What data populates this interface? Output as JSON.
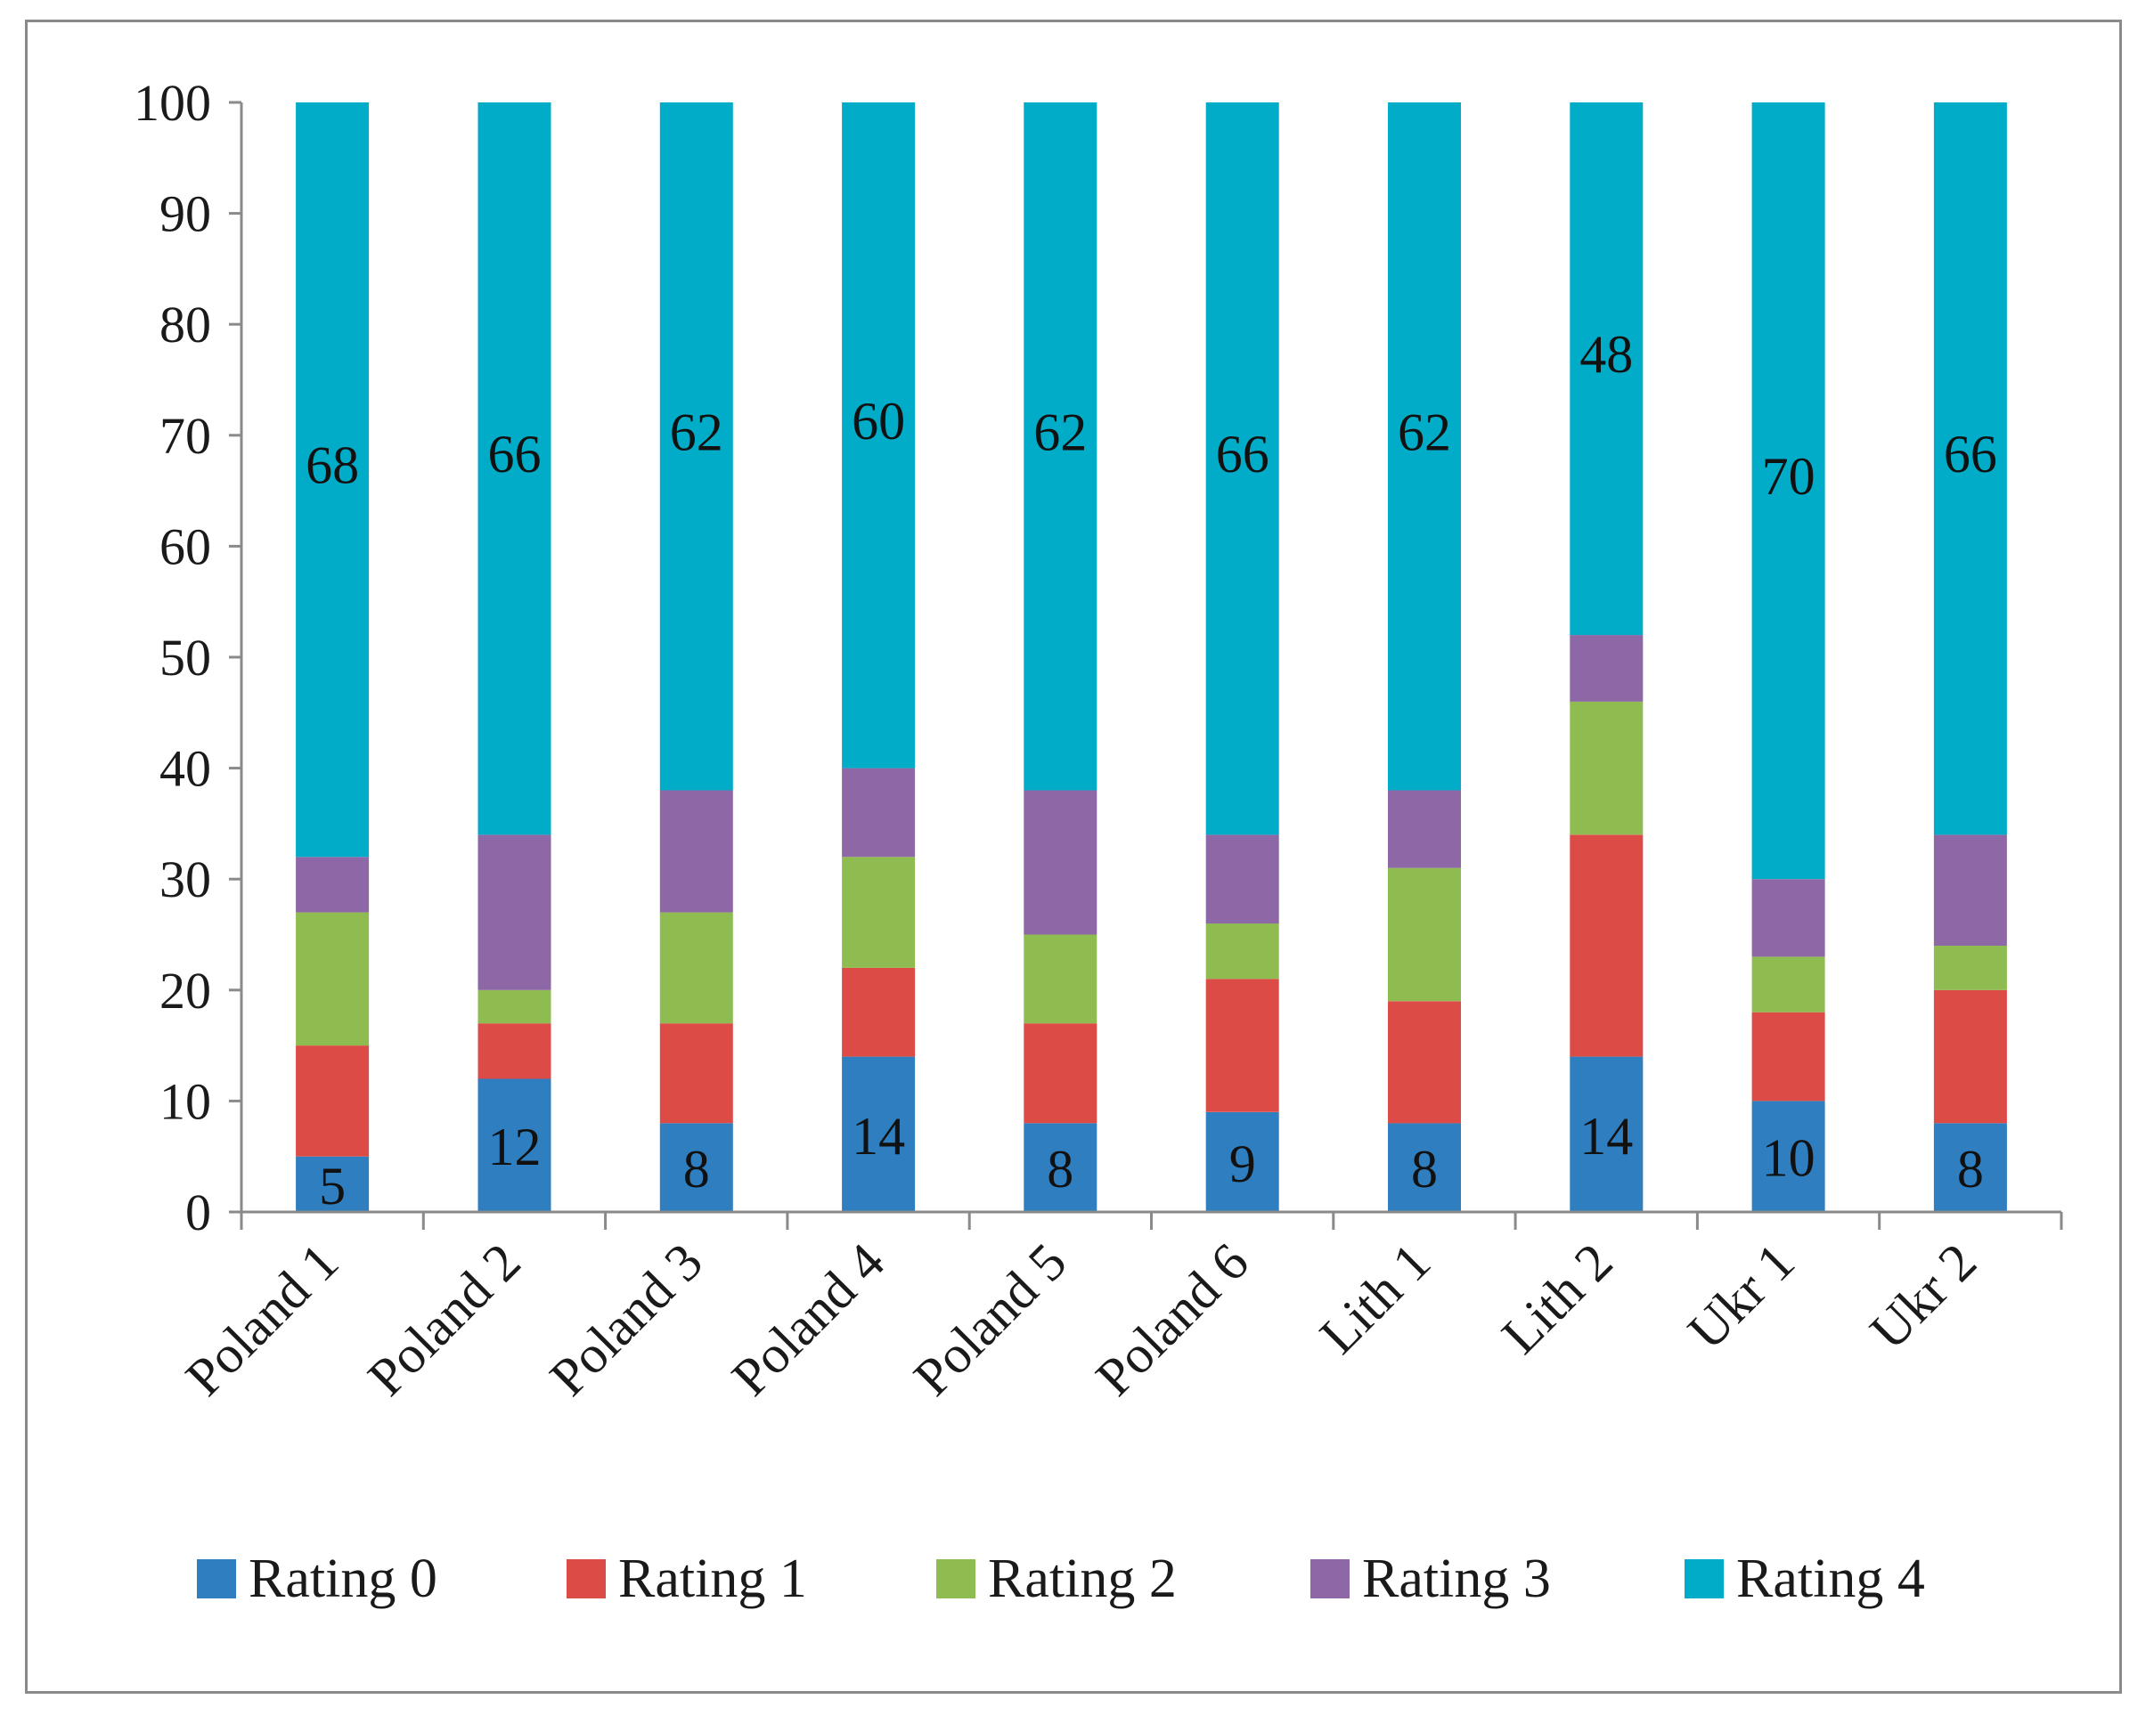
{
  "chart_data": {
    "type": "bar",
    "stacked": true,
    "title": "",
    "xlabel": "",
    "ylabel": "",
    "ylim": [
      0,
      100
    ],
    "yticks": [
      0,
      10,
      20,
      30,
      40,
      50,
      60,
      70,
      80,
      90,
      100
    ],
    "grid": false,
    "legend_position": "bottom",
    "categories": [
      "Poland 1",
      "Poland 2",
      "Poland 3",
      "Poland 4",
      "Poland 5",
      "Poland 6",
      "Lith 1",
      "Lith 2",
      "Ukr 1",
      "Ukr 2"
    ],
    "series": [
      {
        "name": "Rating 0",
        "color": "#2e7ec0",
        "labeled": true,
        "values": [
          5,
          12,
          8,
          14,
          8,
          9,
          8,
          14,
          10,
          8
        ]
      },
      {
        "name": "Rating 1",
        "color": "#dd4b47",
        "labeled": false,
        "values": [
          10,
          5,
          9,
          8,
          9,
          12,
          11,
          20,
          8,
          12
        ]
      },
      {
        "name": "Rating 2",
        "color": "#8fbc50",
        "labeled": false,
        "values": [
          12,
          3,
          10,
          10,
          8,
          5,
          12,
          12,
          5,
          4
        ]
      },
      {
        "name": "Rating 3",
        "color": "#8d67a6",
        "labeled": false,
        "values": [
          5,
          14,
          11,
          8,
          13,
          8,
          7,
          6,
          7,
          10
        ]
      },
      {
        "name": "Rating 4",
        "color": "#00acc8",
        "labeled": true,
        "values": [
          68,
          66,
          62,
          60,
          62,
          66,
          62,
          48,
          70,
          66
        ]
      }
    ]
  }
}
